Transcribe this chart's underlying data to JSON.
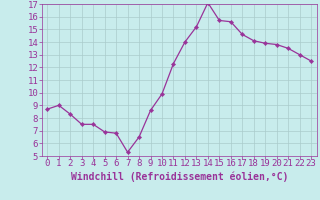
{
  "x": [
    0,
    1,
    2,
    3,
    4,
    5,
    6,
    7,
    8,
    9,
    10,
    11,
    12,
    13,
    14,
    15,
    16,
    17,
    18,
    19,
    20,
    21,
    22,
    23
  ],
  "y": [
    8.7,
    9.0,
    8.3,
    7.5,
    7.5,
    6.9,
    6.8,
    5.3,
    6.5,
    8.6,
    9.9,
    12.3,
    14.0,
    15.2,
    17.1,
    15.7,
    15.6,
    14.6,
    14.1,
    13.9,
    13.8,
    13.5,
    13.0,
    12.5
  ],
  "line_color": "#993399",
  "marker": "D",
  "marker_size": 2.2,
  "background_color": "#c8ecec",
  "grid_color": "#aacccc",
  "xlabel": "Windchill (Refroidissement éolien,°C)",
  "ylim": [
    5,
    17
  ],
  "xlim": [
    -0.5,
    23.5
  ],
  "yticks": [
    5,
    6,
    7,
    8,
    9,
    10,
    11,
    12,
    13,
    14,
    15,
    16,
    17
  ],
  "xticks": [
    0,
    1,
    2,
    3,
    4,
    5,
    6,
    7,
    8,
    9,
    10,
    11,
    12,
    13,
    14,
    15,
    16,
    17,
    18,
    19,
    20,
    21,
    22,
    23
  ],
  "tick_color": "#993399",
  "label_color": "#993399",
  "font_size": 6.5,
  "xlabel_font_size": 7.0,
  "line_width": 0.9
}
